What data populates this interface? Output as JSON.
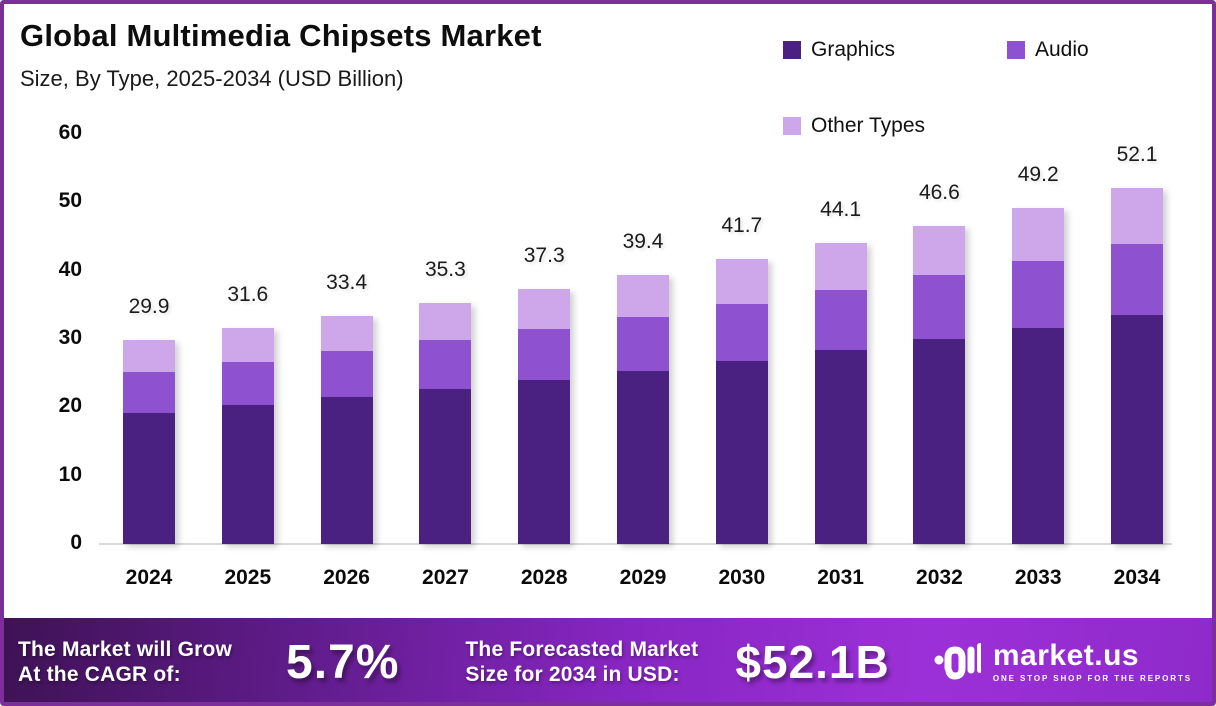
{
  "header": {
    "title": "Global Multimedia Chipsets Market",
    "subtitle": "Size, By Type, 2025-2034 (USD Billion)"
  },
  "legend": [
    {
      "label": "Graphics",
      "color": "#4a2080"
    },
    {
      "label": "Audio",
      "color": "#8e52d0"
    },
    {
      "label": "Other Types",
      "color": "#cda7ea"
    }
  ],
  "chart_data": {
    "type": "bar",
    "stacked": true,
    "title": "Global Multimedia Chipsets Market Size, By Type, 2025-2034 (USD Billion)",
    "xlabel": "",
    "ylabel": "",
    "ylim": [
      0,
      60
    ],
    "yticks": [
      0,
      10,
      20,
      30,
      40,
      50,
      60
    ],
    "grid": false,
    "legend_position": "top-right",
    "categories": [
      "2024",
      "2025",
      "2026",
      "2027",
      "2028",
      "2029",
      "2030",
      "2031",
      "2032",
      "2033",
      "2034"
    ],
    "series": [
      {
        "name": "Graphics",
        "color": "#4a2080",
        "values": [
          19.2,
          20.3,
          21.5,
          22.7,
          24.0,
          25.3,
          26.8,
          28.4,
          30.0,
          31.6,
          33.5
        ]
      },
      {
        "name": "Audio",
        "color": "#8e52d0",
        "values": [
          6.0,
          6.3,
          6.7,
          7.1,
          7.5,
          7.9,
          8.3,
          8.8,
          9.3,
          9.8,
          10.4
        ]
      },
      {
        "name": "Other Types",
        "color": "#cda7ea",
        "values": [
          4.7,
          5.0,
          5.2,
          5.5,
          5.8,
          6.2,
          6.6,
          6.9,
          7.3,
          7.8,
          8.2
        ]
      }
    ],
    "totals": [
      29.9,
      31.6,
      33.4,
      35.3,
      37.3,
      39.4,
      41.7,
      44.1,
      46.6,
      49.2,
      52.1
    ],
    "total_labels": [
      "29.9",
      "31.6",
      "33.4",
      "35.3",
      "37.3",
      "39.4",
      "41.7",
      "44.1",
      "46.6",
      "49.2",
      "52.1"
    ]
  },
  "footer": {
    "cagr_label_line1": "The Market will Grow",
    "cagr_label_line2": "At the CAGR of:",
    "cagr_value": "5.7%",
    "forecast_label_line1": "The Forecasted Market",
    "forecast_label_line2": "Size for 2034 in USD:",
    "forecast_value": "$52.1B",
    "brand": {
      "name": "market.us",
      "tagline": "ONE STOP SHOP FOR THE REPORTS"
    }
  },
  "colors": {
    "frame_border": "#7c2e9b",
    "axis_line": "#d9d9d9",
    "footer_gradient_start": "#3e1254",
    "footer_gradient_end": "#9c30d8",
    "text": "#0d0d0d"
  }
}
